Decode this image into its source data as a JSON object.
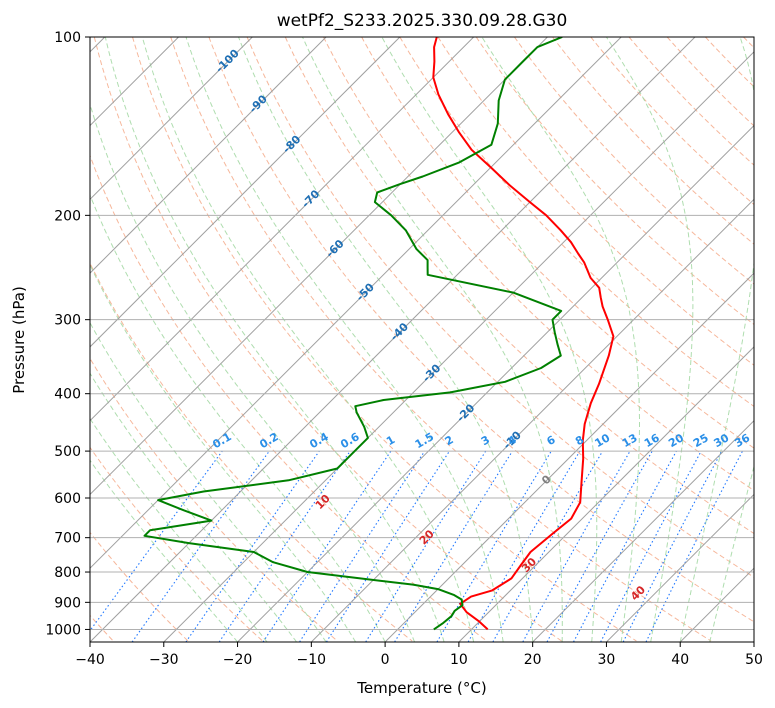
{
  "chart_data": {
    "type": "line",
    "title": "wetPf2_S233.2025.330.09.28.G30",
    "xlabel": "Temperature (°C)",
    "ylabel": "Pressure (hPa)",
    "xlim": [
      -40,
      50
    ],
    "ylim": [
      1050,
      100
    ],
    "y_scale": "log",
    "x_ticks": [
      -40,
      -30,
      -20,
      -10,
      0,
      10,
      20,
      30,
      40,
      50
    ],
    "x_tick_labels": [
      "−40",
      "−30",
      "−20",
      "−10",
      "0",
      "10",
      "20",
      "30",
      "40",
      "50"
    ],
    "y_ticks": [
      100,
      200,
      300,
      400,
      500,
      600,
      700,
      800,
      900,
      1000
    ],
    "y_tick_labels": [
      "100",
      "200",
      "300",
      "400",
      "500",
      "600",
      "700",
      "800",
      "900",
      "1000"
    ],
    "grid": true,
    "skew": true,
    "colors": {
      "temperature": "#ff0000",
      "dewpoint": "#008000",
      "isotherm": "#a0a0a0",
      "dry_adiabat": "#f4a582",
      "moist_adiabat": "#a6d9a6",
      "mixing_ratio": "#1f77ff",
      "isotherm_label": "#1f6fb4",
      "mixing_label": "#2a8fe8",
      "theta_label": "#d62728",
      "zero_label": "#808080"
    },
    "series": [
      {
        "key": "temperature",
        "points": [
          [
            12.2,
            1000
          ],
          [
            10.0,
            970
          ],
          [
            7.0,
            935
          ],
          [
            5.0,
            905
          ],
          [
            5.5,
            880
          ],
          [
            7.5,
            860
          ],
          [
            8.5,
            820
          ],
          [
            8.0,
            780
          ],
          [
            7.5,
            740
          ],
          [
            8.0,
            690
          ],
          [
            8.5,
            650
          ],
          [
            7.5,
            610
          ],
          [
            5.0,
            565
          ],
          [
            2.0,
            515
          ],
          [
            -0.5,
            480
          ],
          [
            -2.5,
            450
          ],
          [
            -4.5,
            415
          ],
          [
            -6.0,
            385
          ],
          [
            -8.5,
            345
          ],
          [
            -10.5,
            320
          ],
          [
            -13.5,
            300
          ],
          [
            -16.0,
            285
          ],
          [
            -17.5,
            275
          ],
          [
            -19.0,
            265
          ],
          [
            -21.5,
            255
          ],
          [
            -24.5,
            240
          ],
          [
            -26.5,
            232
          ],
          [
            -29.0,
            222
          ],
          [
            -32.0,
            212
          ],
          [
            -36.0,
            200
          ],
          [
            -40.0,
            190
          ],
          [
            -45.0,
            178
          ],
          [
            -50.0,
            166
          ],
          [
            -55.0,
            155
          ],
          [
            -59.0,
            145
          ],
          [
            -63.0,
            135
          ],
          [
            -67.0,
            125
          ],
          [
            -70.0,
            117
          ],
          [
            -72.0,
            110
          ],
          [
            -74.0,
            104
          ],
          [
            -75.0,
            100
          ]
        ]
      },
      {
        "key": "dewpoint",
        "points": [
          [
            4.9,
            1000
          ],
          [
            5.3,
            975
          ],
          [
            5.5,
            950
          ],
          [
            5.2,
            930
          ],
          [
            5.5,
            910
          ],
          [
            4.6,
            890
          ],
          [
            3.0,
            875
          ],
          [
            0.0,
            855
          ],
          [
            -4.0,
            840
          ],
          [
            -12.0,
            820
          ],
          [
            -20.0,
            800
          ],
          [
            -26.0,
            770
          ],
          [
            -30.0,
            740
          ],
          [
            -40.0,
            715
          ],
          [
            -47.0,
            695
          ],
          [
            -47.0,
            680
          ],
          [
            -40.0,
            655
          ],
          [
            -45.0,
            630
          ],
          [
            -50.0,
            605
          ],
          [
            -45.0,
            585
          ],
          [
            -35.0,
            560
          ],
          [
            -30.0,
            535
          ],
          [
            -30.0,
            505
          ],
          [
            -30.0,
            475
          ],
          [
            -32.0,
            455
          ],
          [
            -35.0,
            430
          ],
          [
            -36.0,
            420
          ],
          [
            -33.0,
            410
          ],
          [
            -25.0,
            398
          ],
          [
            -19.0,
            382
          ],
          [
            -16.0,
            362
          ],
          [
            -15.0,
            345
          ],
          [
            -17.0,
            330
          ],
          [
            -19.0,
            315
          ],
          [
            -21.0,
            300
          ],
          [
            -21.0,
            290
          ],
          [
            -30.0,
            270
          ],
          [
            -44.0,
            252
          ],
          [
            -45.0,
            245
          ],
          [
            -46.0,
            238
          ],
          [
            -49.0,
            228
          ],
          [
            -53.0,
            212
          ],
          [
            -57.0,
            200
          ],
          [
            -61.0,
            190
          ],
          [
            -62.0,
            183
          ],
          [
            -60.0,
            177
          ],
          [
            -58.0,
            172
          ],
          [
            -55.0,
            163
          ],
          [
            -53.0,
            152
          ],
          [
            -55.0,
            140
          ],
          [
            -58.0,
            128
          ],
          [
            -60.0,
            118
          ],
          [
            -60.0,
            110
          ],
          [
            -60.0,
            104
          ],
          [
            -58.0,
            100
          ]
        ]
      }
    ],
    "isotherm_label_list": [
      {
        "text": "-100",
        "T": -100
      },
      {
        "text": "-90",
        "T": -90
      },
      {
        "text": "-80",
        "T": -80
      },
      {
        "text": "-70",
        "T": -70
      },
      {
        "text": "-60",
        "T": -60
      },
      {
        "text": "-50",
        "T": -50
      },
      {
        "text": "-40",
        "T": -40
      },
      {
        "text": "-30",
        "T": -30
      },
      {
        "text": "-20",
        "T": -20
      },
      {
        "text": "-10",
        "T": -10
      },
      {
        "text": "0",
        "T": 0
      }
    ],
    "mixing_ratio_label_list": [
      {
        "text": "0.1",
        "w": 0.1
      },
      {
        "text": "0.2",
        "w": 0.2
      },
      {
        "text": "0.4",
        "w": 0.4
      },
      {
        "text": "0.6",
        "w": 0.6
      },
      {
        "text": "1",
        "w": 1
      },
      {
        "text": "1.5",
        "w": 1.5
      },
      {
        "text": "2",
        "w": 2
      },
      {
        "text": "3",
        "w": 3
      },
      {
        "text": "4",
        "w": 4
      },
      {
        "text": "6",
        "w": 6
      },
      {
        "text": "8",
        "w": 8
      },
      {
        "text": "10",
        "w": 10
      },
      {
        "text": "13",
        "w": 13
      },
      {
        "text": "16",
        "w": 16
      },
      {
        "text": "20",
        "w": 20
      },
      {
        "text": "25",
        "w": 25
      },
      {
        "text": "30",
        "w": 30
      },
      {
        "text": "36",
        "w": 36
      }
    ],
    "theta_label_list": [
      {
        "text": "10",
        "T": 10
      },
      {
        "text": "20",
        "T": 20
      },
      {
        "text": "30",
        "T": 30
      },
      {
        "text": "40",
        "T": 40
      }
    ]
  }
}
